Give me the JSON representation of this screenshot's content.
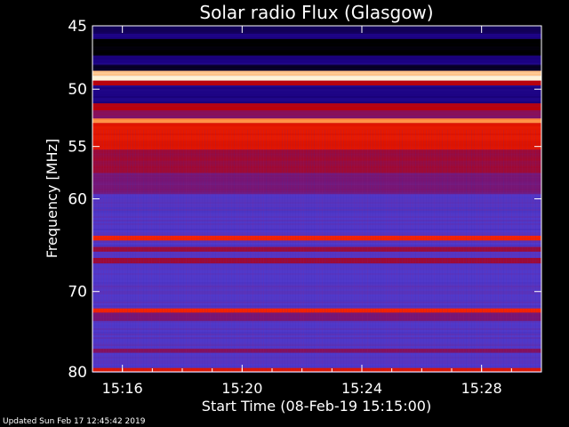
{
  "chart_data": {
    "type": "heatmap",
    "title": "Solar radio Flux (Glasgow)",
    "xlabel": "Start Time (08-Feb-19 15:15:00)",
    "ylabel": "Frequency [MHz]",
    "x_ticks": [
      "15:16",
      "15:20",
      "15:24",
      "15:28"
    ],
    "x_tick_minutes": [
      1,
      5,
      9,
      13
    ],
    "x_range_minutes": [
      0,
      15
    ],
    "y_ticks": [
      45,
      50,
      55,
      60,
      70,
      80
    ],
    "y_range_mhz": [
      45,
      80
    ],
    "y_scale": "log",
    "colormap": [
      "#000000",
      "#1a0080",
      "#4f3bcf",
      "#7a1470",
      "#c00000",
      "#ff2a00",
      "#ffa050",
      "#fff2d8"
    ],
    "background_intensity": 0.3,
    "bands": [
      {
        "fmin": 45.0,
        "fmax": 45.6,
        "intensity": 0.1
      },
      {
        "fmin": 45.6,
        "fmax": 46.0,
        "intensity": 0.15
      },
      {
        "fmin": 46.0,
        "fmax": 47.3,
        "intensity": 0.0
      },
      {
        "fmin": 47.3,
        "fmax": 48.0,
        "intensity": 0.15
      },
      {
        "fmin": 48.0,
        "fmax": 48.5,
        "intensity": 0.05
      },
      {
        "fmin": 48.5,
        "fmax": 48.9,
        "intensity": 0.92
      },
      {
        "fmin": 48.9,
        "fmax": 49.3,
        "intensity": 1.0
      },
      {
        "fmin": 49.3,
        "fmax": 49.7,
        "intensity": 0.55
      },
      {
        "fmin": 49.7,
        "fmax": 51.2,
        "intensity": 0.15
      },
      {
        "fmin": 51.2,
        "fmax": 51.8,
        "intensity": 0.55
      },
      {
        "fmin": 51.8,
        "fmax": 52.5,
        "intensity": 0.45
      },
      {
        "fmin": 52.5,
        "fmax": 52.9,
        "intensity": 0.83
      },
      {
        "fmin": 52.9,
        "fmax": 53.5,
        "intensity": 0.65
      },
      {
        "fmin": 53.5,
        "fmax": 55.3,
        "intensity": 0.65
      },
      {
        "fmin": 55.3,
        "fmax": 57.5,
        "intensity": 0.5
      },
      {
        "fmin": 57.5,
        "fmax": 59.5,
        "intensity": 0.42
      },
      {
        "fmin": 63.8,
        "fmax": 64.3,
        "intensity": 0.68
      },
      {
        "fmin": 65.0,
        "fmax": 65.5,
        "intensity": 0.5
      },
      {
        "fmin": 66.2,
        "fmax": 66.8,
        "intensity": 0.5
      },
      {
        "fmin": 72.0,
        "fmax": 72.5,
        "intensity": 0.68
      },
      {
        "fmin": 72.5,
        "fmax": 73.5,
        "intensity": 0.42
      },
      {
        "fmin": 77.0,
        "fmax": 77.5,
        "intensity": 0.45
      },
      {
        "fmin": 79.5,
        "fmax": 80.0,
        "intensity": 0.65
      }
    ]
  },
  "footer": {
    "updated": "Updated Sun Feb 17 12:45:42 2019"
  }
}
